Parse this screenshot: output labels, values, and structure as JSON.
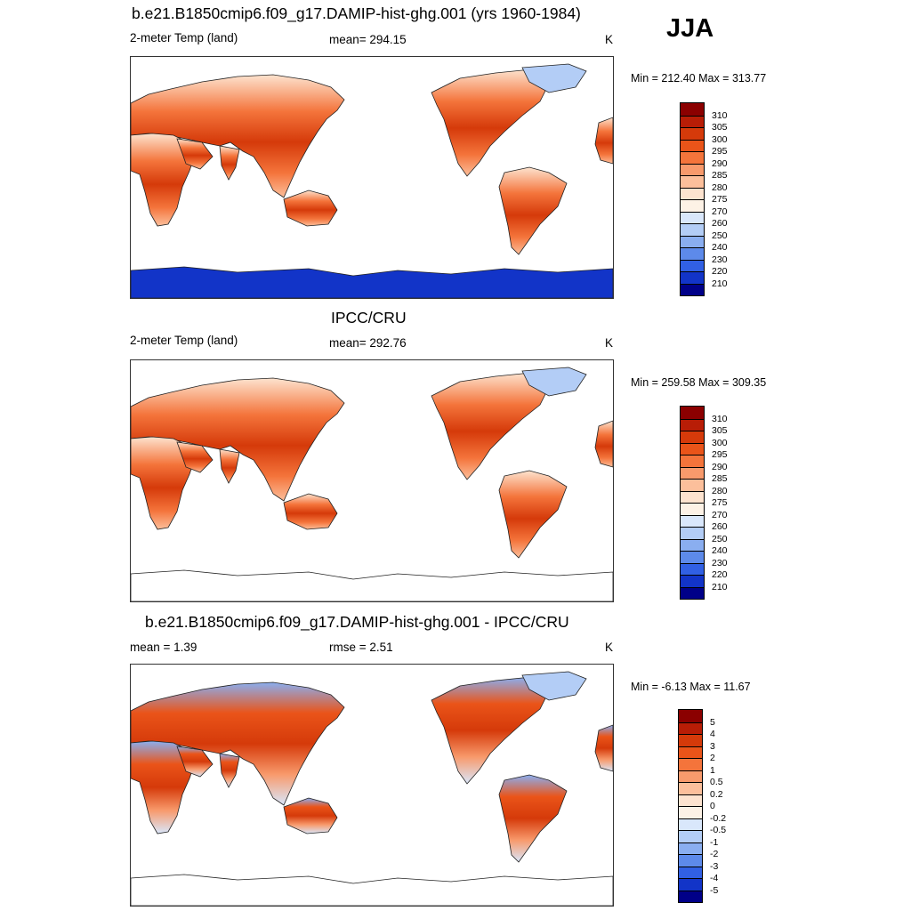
{
  "season": "JJA",
  "panels": [
    {
      "title": "b.e21.B1850cmip6.f09_g17.DAMIP-hist-ghg.001 (yrs 1960-1984)",
      "left_text": "2-meter Temp (land)",
      "center_text": "mean= 294.15",
      "right_text": "K",
      "minmax": "Min = 212.40 Max = 313.77",
      "colorbar": "abs",
      "antarctica": true
    },
    {
      "title": "IPCC/CRU",
      "left_text": "2-meter Temp (land)",
      "center_text": "mean= 292.76",
      "right_text": "K",
      "minmax": "Min = 259.58 Max = 309.35",
      "colorbar": "abs",
      "antarctica": false
    },
    {
      "title": "b.e21.B1850cmip6.f09_g17.DAMIP-hist-ghg.001 - IPCC/CRU",
      "left_text": "mean =   1.39",
      "center_text": "rmse =   2.51",
      "right_text": "K",
      "minmax": "Min =  -6.13 Max =  11.67",
      "colorbar": "diff",
      "antarctica": false
    }
  ],
  "colorbars": {
    "abs": {
      "labels": [
        "310",
        "305",
        "300",
        "295",
        "290",
        "285",
        "280",
        "275",
        "270",
        "260",
        "250",
        "240",
        "230",
        "220",
        "210"
      ],
      "colors": [
        "#8b0000",
        "#b81d06",
        "#d53a0a",
        "#ea5419",
        "#f4743b",
        "#f89a6c",
        "#fcbf9b",
        "#fde3cf",
        "#fdf2e6",
        "#d9e7fb",
        "#b3cdf6",
        "#8aaef0",
        "#5d8aea",
        "#3160e4",
        "#1234c8",
        "#000088"
      ]
    },
    "diff": {
      "labels": [
        "5",
        "4",
        "3",
        "2",
        "1",
        "0.5",
        "0.2",
        "0",
        "-0.2",
        "-0.5",
        "-1",
        "-2",
        "-3",
        "-4",
        "-5"
      ],
      "colors": [
        "#8b0000",
        "#b81d06",
        "#d53a0a",
        "#ea5419",
        "#f4743b",
        "#f89a6c",
        "#fcbf9b",
        "#fde3cf",
        "#fdf2e6",
        "#d9e7fb",
        "#b3cdf6",
        "#8aaef0",
        "#5d8aea",
        "#3160e4",
        "#1234c8",
        "#000088"
      ]
    }
  }
}
